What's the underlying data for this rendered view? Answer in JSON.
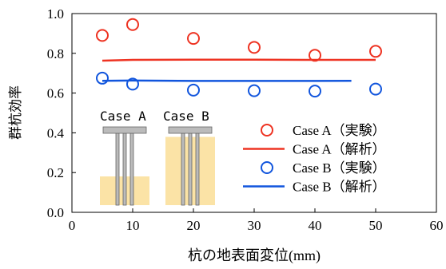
{
  "chart_data": {
    "type": "scatter",
    "xlabel": "杭の地表面変位(mm)",
    "ylabel": "群杭効率",
    "xlim": [
      0,
      60
    ],
    "ylim": [
      0.0,
      1.0
    ],
    "xticks": [
      "0",
      "10",
      "20",
      "30",
      "40",
      "50",
      "60"
    ],
    "yticks": [
      "0.0",
      "0.2",
      "0.4",
      "0.6",
      "0.8",
      "1.0"
    ],
    "grid": false,
    "legend_position": "lower-right",
    "series": [
      {
        "name": "Case A（実験）",
        "kind": "markers",
        "color": "#ee3322",
        "x": [
          5,
          10,
          20,
          30,
          40,
          50
        ],
        "y": [
          0.89,
          0.945,
          0.875,
          0.83,
          0.79,
          0.81
        ]
      },
      {
        "name": "Case A（解析）",
        "kind": "line",
        "color": "#ee3322",
        "x": [
          5,
          10,
          20,
          30,
          40,
          50
        ],
        "y": [
          0.763,
          0.767,
          0.768,
          0.768,
          0.767,
          0.767
        ]
      },
      {
        "name": "Case B（実験）",
        "kind": "markers",
        "color": "#1155dd",
        "x": [
          5,
          10,
          20,
          30,
          40,
          50
        ],
        "y": [
          0.675,
          0.645,
          0.615,
          0.612,
          0.61,
          0.62
        ]
      },
      {
        "name": "Case B（解析）",
        "kind": "line",
        "color": "#1155dd",
        "x": [
          5,
          10,
          20,
          30,
          40,
          46
        ],
        "y": [
          0.662,
          0.663,
          0.661,
          0.661,
          0.661,
          0.662
        ]
      }
    ]
  },
  "inset": {
    "case_a_label": "Case A",
    "case_b_label": "Case B",
    "case_a_color": "#ee3322",
    "case_b_color": "#1155dd",
    "soil_color": "#fbe3a6",
    "pile_color": "#bbbbbb",
    "case_a_soil_depth_fraction": 0.4,
    "case_b_soil_depth_fraction": 0.95
  }
}
